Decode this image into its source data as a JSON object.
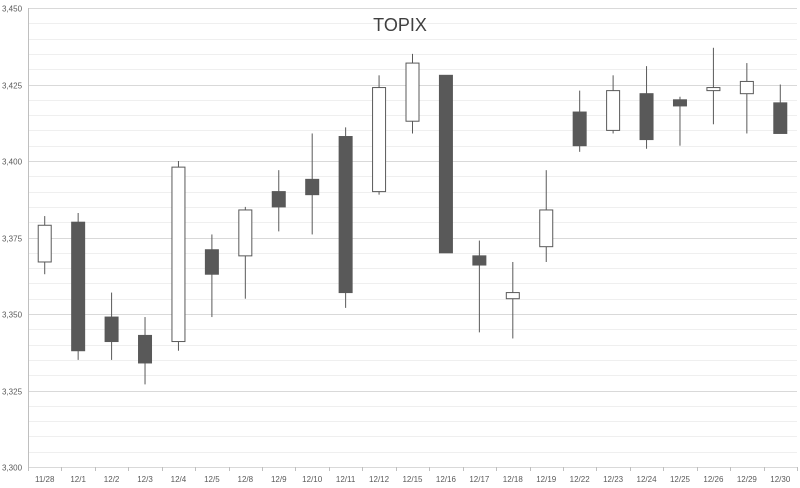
{
  "chart_data": {
    "type": "candlestick",
    "title": "TOPIX",
    "ylim": [
      3300,
      3450
    ],
    "y_ticks": [
      "3,300",
      "3,325",
      "3,350",
      "3,375",
      "3,400",
      "3,425",
      "3,450"
    ],
    "y_tick_values": [
      3300,
      3325,
      3350,
      3375,
      3400,
      3425,
      3450
    ],
    "y_minor_step": 5,
    "grid": true,
    "categories": [
      "11/28",
      "12/1",
      "12/2",
      "12/3",
      "12/4",
      "12/5",
      "12/8",
      "12/9",
      "12/10",
      "12/11",
      "12/12",
      "12/15",
      "12/16",
      "12/17",
      "12/18",
      "12/19",
      "12/22",
      "12/23",
      "12/24",
      "12/25",
      "12/26",
      "12/29",
      "12/30"
    ],
    "series": [
      {
        "open": 3367,
        "high": 3382,
        "low": 3363,
        "close": 3379
      },
      {
        "open": 3380,
        "high": 3383,
        "low": 3335,
        "close": 3338
      },
      {
        "open": 3349,
        "high": 3357,
        "low": 3335,
        "close": 3341
      },
      {
        "open": 3343,
        "high": 3349,
        "low": 3327,
        "close": 3334
      },
      {
        "open": 3341,
        "high": 3400,
        "low": 3338,
        "close": 3398
      },
      {
        "open": 3371,
        "high": 3376,
        "low": 3349,
        "close": 3363
      },
      {
        "open": 3369,
        "high": 3385,
        "low": 3355,
        "close": 3384
      },
      {
        "open": 3390,
        "high": 3397,
        "low": 3377,
        "close": 3385
      },
      {
        "open": 3394,
        "high": 3409,
        "low": 3376,
        "close": 3389
      },
      {
        "open": 3408,
        "high": 3411,
        "low": 3352,
        "close": 3357
      },
      {
        "open": 3390,
        "high": 3428,
        "low": 3389,
        "close": 3424
      },
      {
        "open": 3413,
        "high": 3435,
        "low": 3409,
        "close": 3432
      },
      {
        "open": 3428,
        "high": 3428,
        "low": 3370,
        "close": 3370
      },
      {
        "open": 3369,
        "high": 3374,
        "low": 3344,
        "close": 3366
      },
      {
        "open": 3355,
        "high": 3367,
        "low": 3342,
        "close": 3357
      },
      {
        "open": 3372,
        "high": 3397,
        "low": 3367,
        "close": 3384
      },
      {
        "open": 3416,
        "high": 3423,
        "low": 3403,
        "close": 3405
      },
      {
        "open": 3410,
        "high": 3428,
        "low": 3409,
        "close": 3423
      },
      {
        "open": 3422,
        "high": 3431,
        "low": 3404,
        "close": 3407
      },
      {
        "open": 3420,
        "high": 3421,
        "low": 3405,
        "close": 3418
      },
      {
        "open": 3423,
        "high": 3437,
        "low": 3412,
        "close": 3424
      },
      {
        "open": 3422,
        "high": 3432,
        "low": 3409,
        "close": 3426
      },
      {
        "open": 3419,
        "high": 3425,
        "low": 3409,
        "close": 3409
      }
    ],
    "colors": {
      "up_fill": "#ffffff",
      "down_fill": "#595959",
      "wick": "#595959",
      "grid_major": "#d9d9d9",
      "grid_minor": "#efefef",
      "axis": "#bfbfbf"
    }
  }
}
